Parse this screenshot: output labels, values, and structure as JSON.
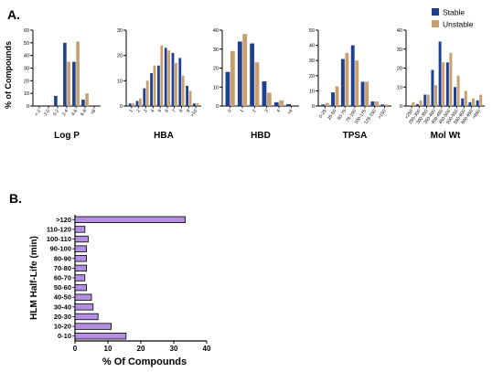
{
  "panel_a_label": "A.",
  "panel_b_label": "B.",
  "legend": {
    "stable_label": "Stable",
    "unstable_label": "Unstable",
    "stable_color": "#1f3f8f",
    "unstable_color": "#c8a070"
  },
  "chart_data": [
    {
      "type": "bar",
      "title": "Log P",
      "ylabel": "% of Compounds",
      "ylim": [
        0,
        60
      ],
      "yticks": [
        0,
        10,
        20,
        30,
        40,
        50,
        60
      ],
      "categories": [
        "<-2",
        "-2-0",
        "0-2",
        "2-4",
        "4-6",
        "6-8",
        ">8"
      ],
      "series": [
        {
          "name": "Stable",
          "values": [
            0,
            0.5,
            8,
            50,
            35,
            5,
            0
          ]
        },
        {
          "name": "Unstable",
          "values": [
            0,
            0,
            1,
            35,
            51,
            10,
            0
          ]
        }
      ]
    },
    {
      "type": "bar",
      "title": "HBA",
      "ylim": [
        0,
        30
      ],
      "yticks": [
        0,
        10,
        20,
        30
      ],
      "categories": [
        "1",
        "2",
        "3",
        "4",
        "5",
        "6",
        "7",
        "8",
        "9",
        ">10"
      ],
      "series": [
        {
          "name": "Stable",
          "values": [
            1,
            2,
            7,
            13,
            16,
            23,
            21,
            19,
            8,
            1
          ]
        },
        {
          "name": "Unstable",
          "values": [
            1,
            3,
            10,
            16,
            24,
            22,
            17,
            12,
            6,
            1
          ]
        }
      ]
    },
    {
      "type": "bar",
      "title": "HBD",
      "ylim": [
        0,
        40
      ],
      "yticks": [
        0,
        10,
        20,
        30,
        40
      ],
      "categories": [
        "0",
        "1",
        "2",
        "3",
        "4",
        ">4"
      ],
      "series": [
        {
          "name": "Stable",
          "values": [
            18,
            34,
            33,
            13,
            2,
            1
          ]
        },
        {
          "name": "Unstable",
          "values": [
            29,
            38,
            23,
            7,
            3,
            0
          ]
        }
      ]
    },
    {
      "type": "bar",
      "title": "TPSA",
      "ylim": [
        0,
        50
      ],
      "yticks": [
        0,
        10,
        20,
        30,
        40,
        50
      ],
      "categories": [
        "0-25",
        "25-50",
        "50-75",
        "75-100",
        "100-125",
        "125-150",
        ">150"
      ],
      "series": [
        {
          "name": "Stable",
          "values": [
            1,
            9,
            31,
            40,
            16,
            3,
            1
          ]
        },
        {
          "name": "Unstable",
          "values": [
            2,
            13,
            35,
            30,
            16,
            3,
            1
          ]
        }
      ]
    },
    {
      "type": "bar",
      "title": "Mol Wt",
      "ylim": [
        0,
        40
      ],
      "yticks": [
        0,
        10,
        20,
        30,
        40
      ],
      "categories": [
        "<250",
        "250-300",
        "300-350",
        "350-400",
        "400-450",
        "450-500",
        "500-550",
        "550-600",
        "600-650",
        ">650"
      ],
      "series": [
        {
          "name": "Stable",
          "values": [
            0,
            1,
            6,
            19,
            34,
            23,
            10,
            4,
            2,
            3
          ]
        },
        {
          "name": "Unstable",
          "values": [
            2,
            3,
            6,
            11,
            23,
            28,
            16,
            8,
            4,
            6
          ]
        }
      ]
    },
    {
      "type": "bar",
      "orientation": "horizontal",
      "xlabel": "% Of  Compounds",
      "ylabel": "HLM Half-Life (min)",
      "xlim": [
        0,
        40
      ],
      "xticks": [
        0,
        10,
        20,
        30,
        40
      ],
      "color": "#b48ee0",
      "categories": [
        "0-10",
        "10-20",
        "20-30",
        "30-40",
        "40-50",
        "50-60",
        "60-70",
        "70-80",
        "80-90",
        "90-100",
        "100-110",
        "110-120",
        ">120"
      ],
      "values": [
        15.5,
        11,
        7,
        5.5,
        5,
        3.5,
        3,
        3.5,
        3.5,
        3.5,
        4,
        3,
        33.5
      ]
    }
  ]
}
